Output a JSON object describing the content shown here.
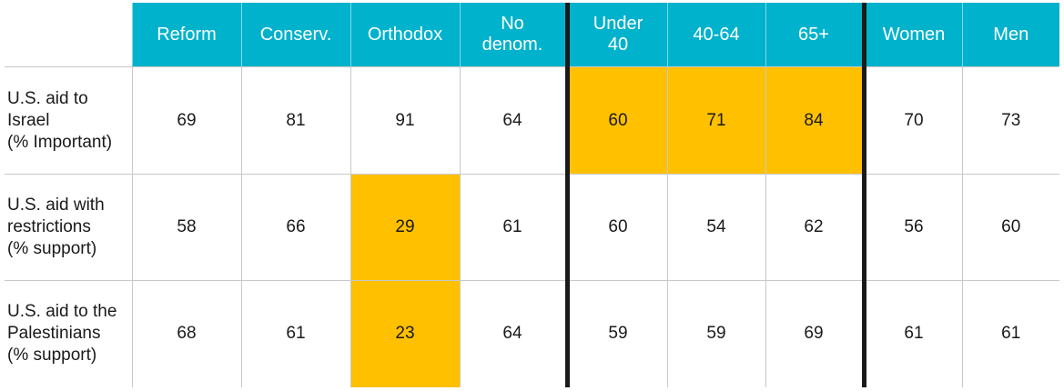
{
  "headers": [
    {
      "line1": "Reform",
      "line2": ""
    },
    {
      "line1": "Conserv.",
      "line2": ""
    },
    {
      "line1": "Orthodox",
      "line2": ""
    },
    {
      "line1": "No",
      "line2": "denom."
    },
    {
      "line1": "Under",
      "line2": "40"
    },
    {
      "line1": "40-64",
      "line2": ""
    },
    {
      "line1": "65+",
      "line2": ""
    },
    {
      "line1": "Women",
      "line2": ""
    },
    {
      "line1": "Men",
      "line2": ""
    }
  ],
  "rows": [
    {
      "label": [
        "U.S. aid to",
        "Israel",
        "(% Important)"
      ],
      "values": [
        "69",
        "81",
        "91",
        "64",
        "60",
        "71",
        "84",
        "70",
        "73"
      ],
      "highlighted": [
        false,
        false,
        false,
        false,
        true,
        true,
        true,
        false,
        false
      ]
    },
    {
      "label": [
        "U.S. aid with",
        "restrictions",
        "(% support)"
      ],
      "values": [
        "58",
        "66",
        "29",
        "61",
        "60",
        "54",
        "62",
        "56",
        "60"
      ],
      "highlighted": [
        false,
        false,
        true,
        false,
        false,
        false,
        false,
        false,
        false
      ]
    },
    {
      "label": [
        "U.S. aid to the",
        "Palestinians",
        "(% support)"
      ],
      "values": [
        "68",
        "61",
        "23",
        "64",
        "59",
        "59",
        "69",
        "61",
        "61"
      ],
      "highlighted": [
        false,
        false,
        true,
        false,
        false,
        false,
        false,
        false,
        false
      ]
    }
  ],
  "colors": {
    "header_bg": "#00b2cc",
    "highlight": "#ffc000",
    "separator": "#1a1a1a"
  }
}
